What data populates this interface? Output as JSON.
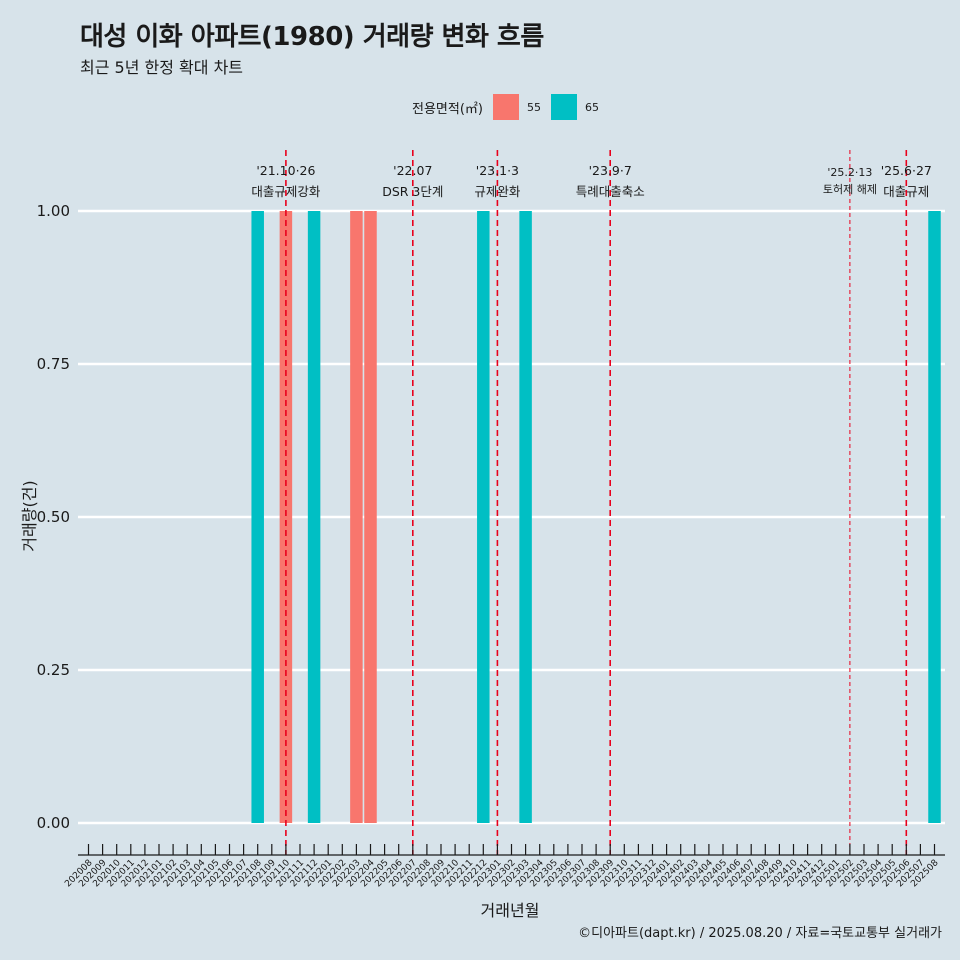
{
  "title": "대성 이화 아파트(1980) 거래량 변화 흐름",
  "subtitle": "최근 5년 한정 확대 차트",
  "caption": "©디아파트(dapt.kr) / 2025.08.20 / 자료=국토교통부 실거래가",
  "colors": {
    "background": "#d7e3ea",
    "series_55": "#f8766d",
    "series_65": "#00bfc4",
    "event_line": "#e8001c",
    "grid": "#ffffff"
  },
  "chart_data": {
    "type": "bar",
    "xlabel": "거래년월",
    "ylabel": "거래량(건)",
    "ylim": [
      0,
      1
    ],
    "yticks": [
      "0.00",
      "0.25",
      "0.50",
      "0.75",
      "1.00"
    ],
    "legend": {
      "title": "전용면적(㎡)",
      "position": "top"
    },
    "categories": [
      "202008",
      "202009",
      "202010",
      "202011",
      "202012",
      "202101",
      "202102",
      "202103",
      "202104",
      "202105",
      "202106",
      "202107",
      "202108",
      "202109",
      "202110",
      "202111",
      "202112",
      "202201",
      "202202",
      "202203",
      "202204",
      "202205",
      "202206",
      "202207",
      "202208",
      "202209",
      "202210",
      "202211",
      "202212",
      "202301",
      "202302",
      "202303",
      "202304",
      "202305",
      "202306",
      "202307",
      "202308",
      "202309",
      "202310",
      "202311",
      "202312",
      "202401",
      "202402",
      "202403",
      "202404",
      "202405",
      "202406",
      "202407",
      "202408",
      "202409",
      "202410",
      "202411",
      "202412",
      "202501",
      "202502",
      "202503",
      "202504",
      "202505",
      "202506",
      "202507",
      "202508"
    ],
    "series": [
      {
        "name": "55",
        "color": "#f8766d",
        "points": [
          {
            "x": "202110",
            "y": 1
          },
          {
            "x": "202203",
            "y": 1
          },
          {
            "x": "202204",
            "y": 1
          }
        ]
      },
      {
        "name": "65",
        "color": "#00bfc4",
        "points": [
          {
            "x": "202108",
            "y": 1
          },
          {
            "x": "202112",
            "y": 1
          },
          {
            "x": "202212",
            "y": 1
          },
          {
            "x": "202303",
            "y": 1
          },
          {
            "x": "202508",
            "y": 1
          }
        ]
      }
    ],
    "events": [
      {
        "x": "202110",
        "date": "'21.10·26",
        "label": "대출규제강화",
        "style": "dashed"
      },
      {
        "x": "202207",
        "date": "'22.07",
        "label": "DSR 3단계",
        "style": "dashed"
      },
      {
        "x": "202301",
        "date": "'23.1·3",
        "label": "규제완화",
        "style": "dashed"
      },
      {
        "x": "202309",
        "date": "'23.9·7",
        "label": "특례대출축소",
        "style": "dashed"
      },
      {
        "x": "202502",
        "date": "'25.2·13",
        "label": "토허제 해제",
        "style": "thin"
      },
      {
        "x": "202506",
        "date": "'25.6·27",
        "label": "대출규제",
        "style": "dashed"
      }
    ]
  }
}
